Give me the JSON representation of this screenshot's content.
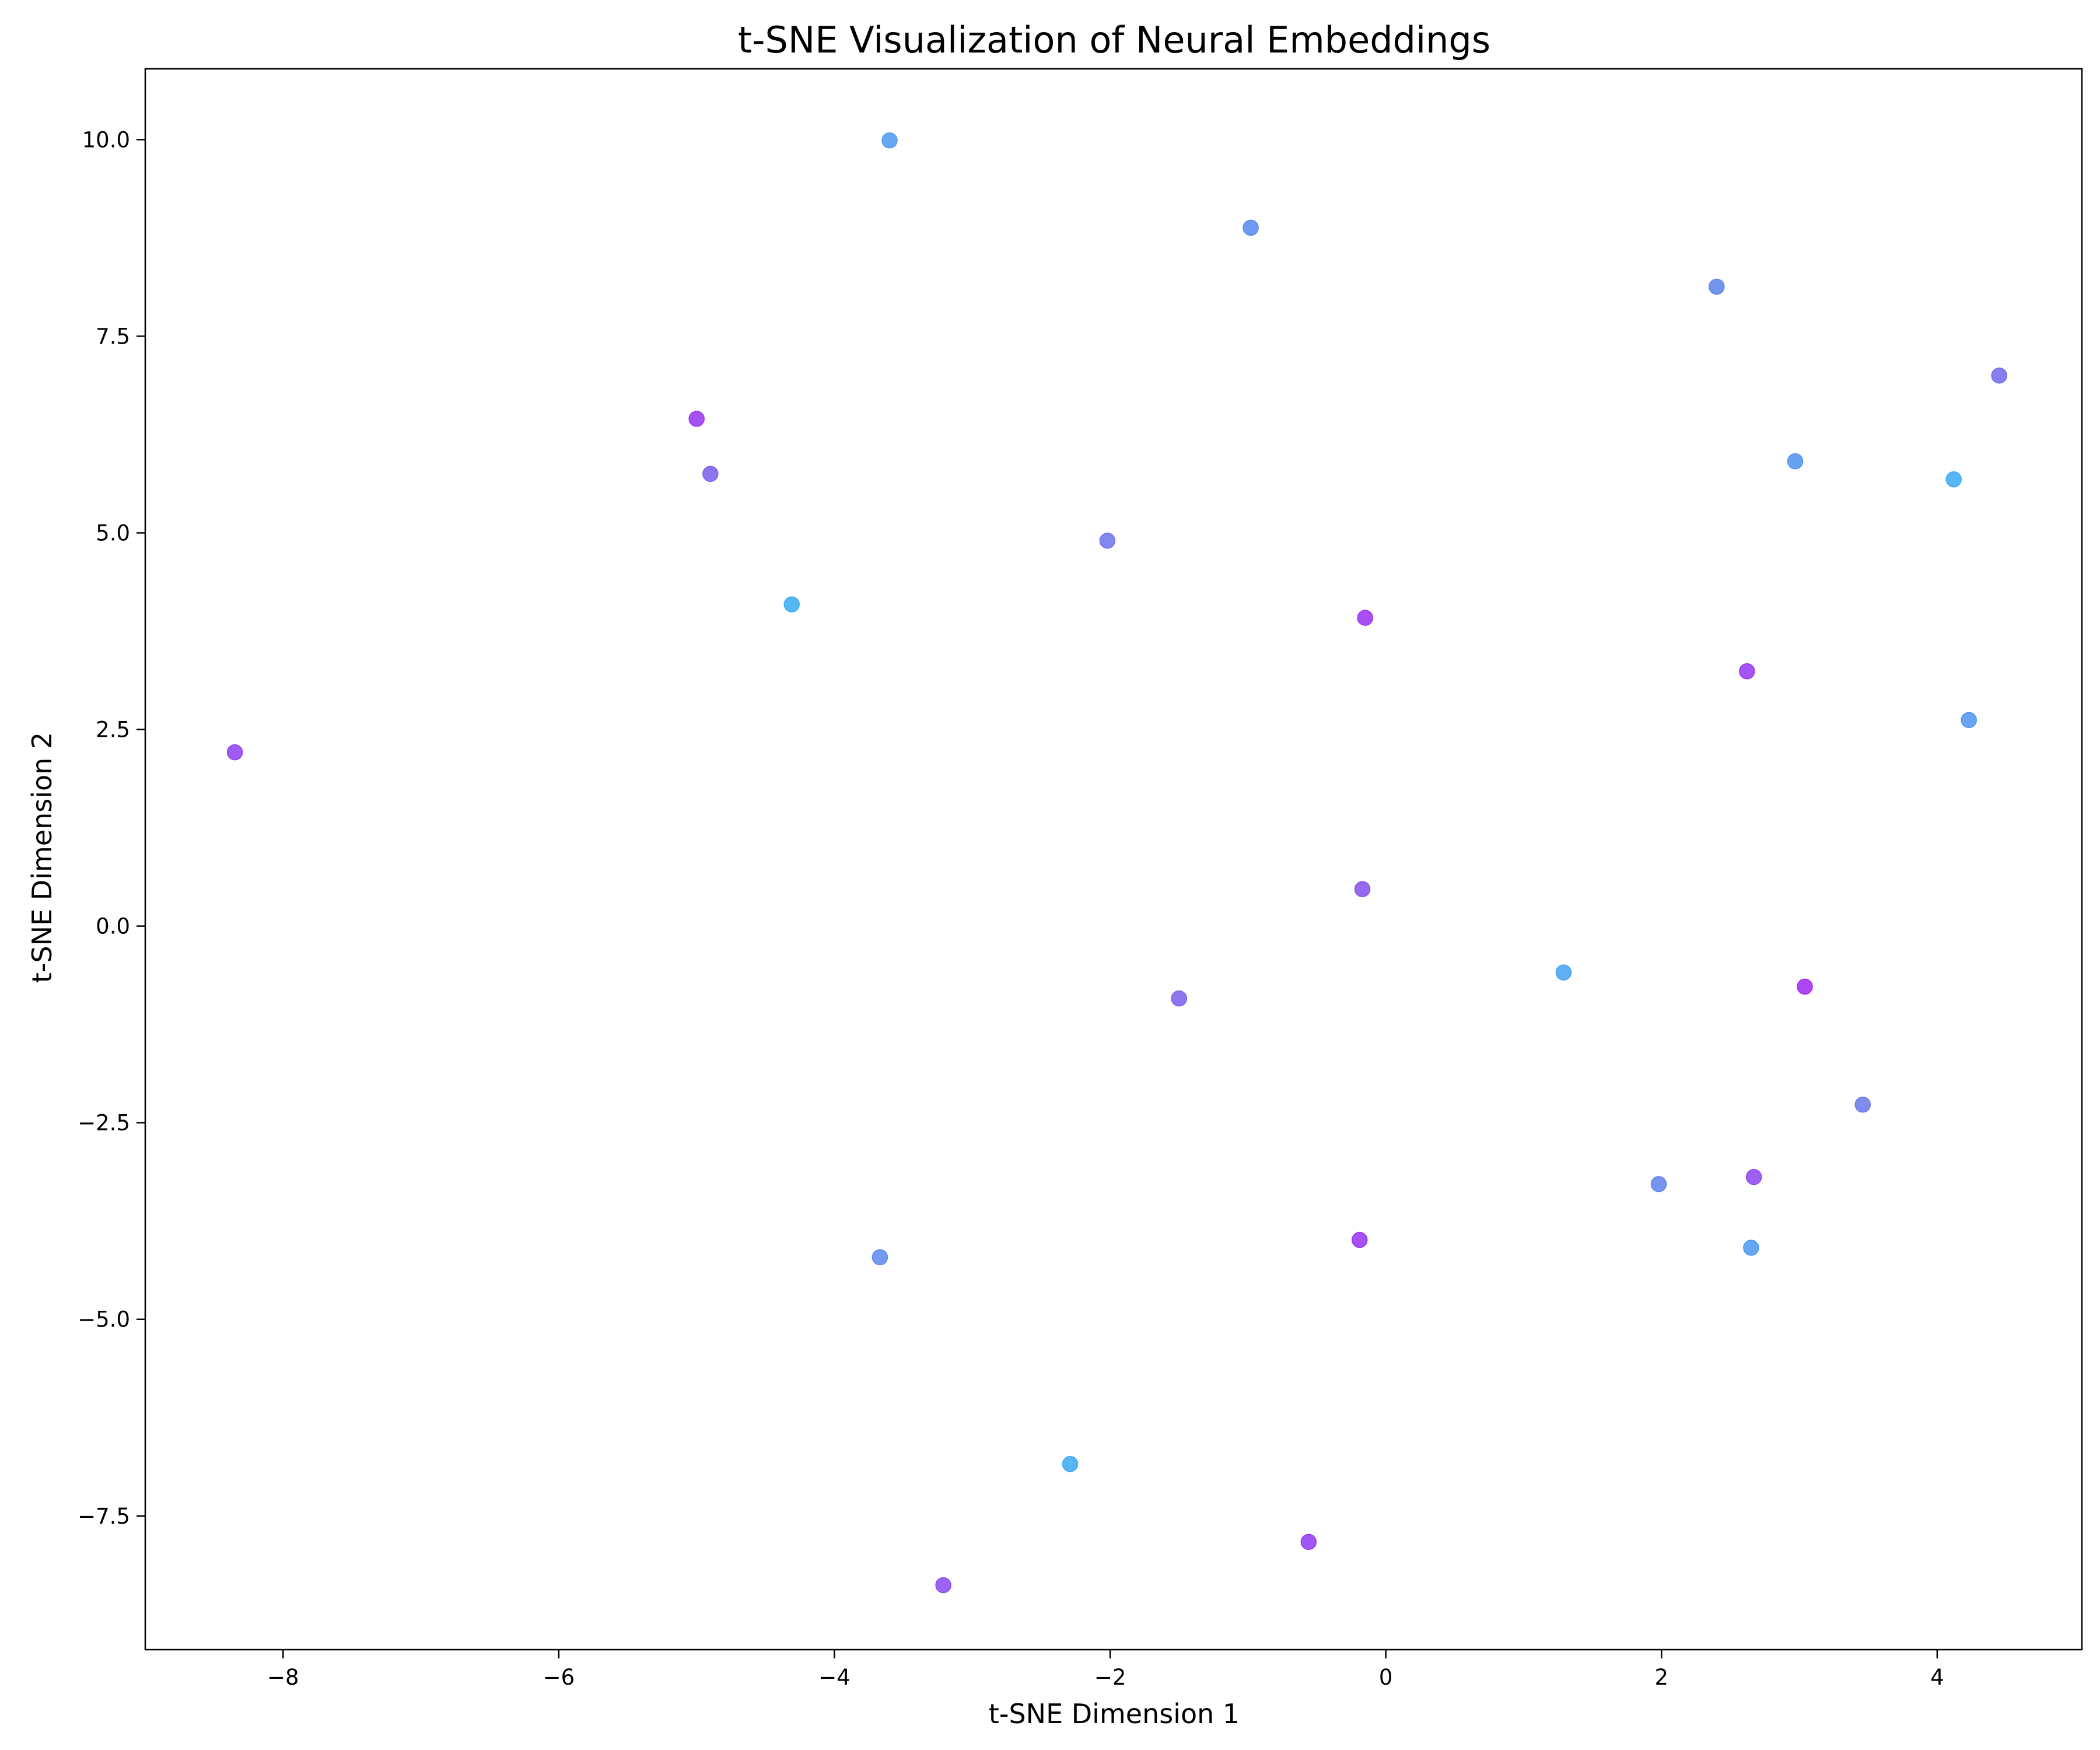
{
  "chart_data": {
    "type": "scatter",
    "title": "t-SNE Visualization of Neural Embeddings",
    "xlabel": "t-SNE Dimension 1",
    "ylabel": "t-SNE Dimension 2",
    "xlim": [
      -9.0,
      5.05
    ],
    "ylim": [
      -9.2,
      10.9
    ],
    "xticks": [
      {
        "value": -8,
        "label": "−8"
      },
      {
        "value": -6,
        "label": "−6"
      },
      {
        "value": -4,
        "label": "−4"
      },
      {
        "value": -2,
        "label": "−2"
      },
      {
        "value": 0,
        "label": "0"
      },
      {
        "value": 2,
        "label": "2"
      },
      {
        "value": 4,
        "label": "4"
      }
    ],
    "yticks": [
      {
        "value": -7.5,
        "label": "−7.5"
      },
      {
        "value": -5.0,
        "label": "−5.0"
      },
      {
        "value": -2.5,
        "label": "−2.5"
      },
      {
        "value": 0.0,
        "label": "0.0"
      },
      {
        "value": 2.5,
        "label": "2.5"
      },
      {
        "value": 5.0,
        "label": "5.0"
      },
      {
        "value": 7.5,
        "label": "7.5"
      },
      {
        "value": 10.0,
        "label": "10.0"
      }
    ],
    "grid": false,
    "legend": "none",
    "points": [
      {
        "x": -3.6,
        "y": 9.99,
        "color": "#4a98f0"
      },
      {
        "x": -0.98,
        "y": 8.88,
        "color": "#5588ee"
      },
      {
        "x": 2.4,
        "y": 8.13,
        "color": "#5a82ea"
      },
      {
        "x": 4.45,
        "y": 7.0,
        "color": "#7566ea"
      },
      {
        "x": -5.0,
        "y": 6.45,
        "color": "#9632f0"
      },
      {
        "x": -4.9,
        "y": 5.75,
        "color": "#7a5cec"
      },
      {
        "x": 2.97,
        "y": 5.91,
        "color": "#4e90ee"
      },
      {
        "x": 4.12,
        "y": 5.68,
        "color": "#3ca8f2"
      },
      {
        "x": -2.02,
        "y": 4.9,
        "color": "#6e72ea"
      },
      {
        "x": -4.31,
        "y": 4.09,
        "color": "#38acf0"
      },
      {
        "x": -0.15,
        "y": 3.92,
        "color": "#9a30f0"
      },
      {
        "x": 2.62,
        "y": 3.24,
        "color": "#9436f0"
      },
      {
        "x": 4.23,
        "y": 2.62,
        "color": "#4c94ee"
      },
      {
        "x": -8.35,
        "y": 2.21,
        "color": "#8e3ef0"
      },
      {
        "x": -0.17,
        "y": 0.47,
        "color": "#8250ec"
      },
      {
        "x": 1.29,
        "y": -0.59,
        "color": "#42a2f0"
      },
      {
        "x": -1.5,
        "y": -0.92,
        "color": "#7a5eec"
      },
      {
        "x": 3.04,
        "y": -0.77,
        "color": "#a026f2"
      },
      {
        "x": 3.46,
        "y": -2.27,
        "color": "#6878ea"
      },
      {
        "x": 1.98,
        "y": -3.28,
        "color": "#5e80ec"
      },
      {
        "x": 2.67,
        "y": -3.19,
        "color": "#8c44ee"
      },
      {
        "x": -3.67,
        "y": -4.21,
        "color": "#5c88f0"
      },
      {
        "x": -0.19,
        "y": -3.99,
        "color": "#9632f0"
      },
      {
        "x": 2.65,
        "y": -4.09,
        "color": "#4a98f0"
      },
      {
        "x": -2.29,
        "y": -6.84,
        "color": "#3aa8f2"
      },
      {
        "x": -0.56,
        "y": -7.83,
        "color": "#9338f0"
      },
      {
        "x": -3.21,
        "y": -8.38,
        "color": "#8a48ee"
      }
    ]
  }
}
